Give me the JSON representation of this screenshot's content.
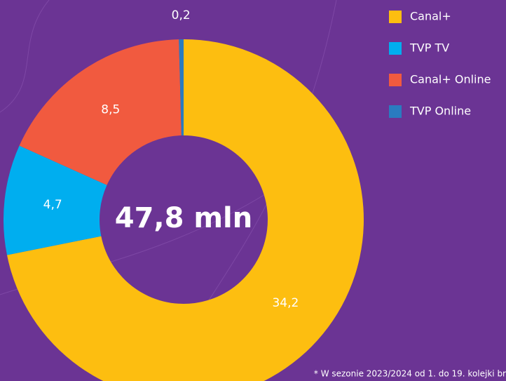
{
  "chart_data": {
    "type": "donut",
    "center_label": "47,8 mln",
    "footnote": "* W sezonie 2023/2024 od 1. do 19. kolejki br",
    "categories": [
      "Canal+",
      "TVP TV",
      "Canal+ Online",
      "TVP Online"
    ],
    "values": [
      34.2,
      4.7,
      8.5,
      0.2
    ],
    "value_labels": [
      "34,2",
      "4,7",
      "8,5",
      "0,2"
    ],
    "colors": [
      "#fdbe10",
      "#00aeef",
      "#f15a3f",
      "#2a7bc0"
    ]
  }
}
